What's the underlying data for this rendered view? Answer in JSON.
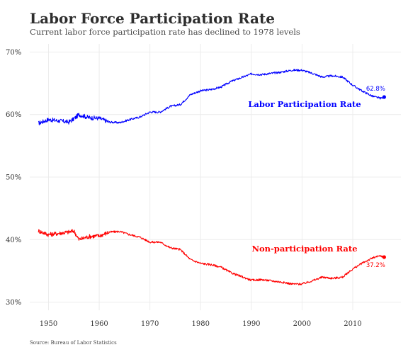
{
  "header": {
    "title": "Labor Force Participation Rate",
    "subtitle": "Current labor force participation rate has declined to 1978 levels"
  },
  "footer": {
    "source": "Source: Bureau of Labor Statistics"
  },
  "chart_data": {
    "type": "line",
    "title": "Labor Force Participation Rate",
    "subtitle": "Current labor force participation rate has declined to 1978 levels",
    "xlabel": "",
    "ylabel": "",
    "xlim": [
      1946.3,
      2019.5
    ],
    "ylim": [
      28.7,
      71.3
    ],
    "x_ticks": [
      1950,
      1960,
      1970,
      1980,
      1990,
      2000,
      2010
    ],
    "y_ticks": [
      30,
      40,
      50,
      60,
      70
    ],
    "y_tick_labels": [
      "30%",
      "40%",
      "50%",
      "60%",
      "70%"
    ],
    "grid": true,
    "legend": "none",
    "series": [
      {
        "name": "Labor Participation Rate",
        "color": "#0000ff",
        "end_label": "62.8%",
        "points": [
          [
            1948,
            58.6
          ],
          [
            1950,
            59.2
          ],
          [
            1952,
            59.0
          ],
          [
            1954,
            58.8
          ],
          [
            1955,
            59.3
          ],
          [
            1956,
            60.0
          ],
          [
            1958,
            59.5
          ],
          [
            1960,
            59.4
          ],
          [
            1962,
            58.8
          ],
          [
            1964,
            58.7
          ],
          [
            1966,
            59.2
          ],
          [
            1968,
            59.6
          ],
          [
            1970,
            60.4
          ],
          [
            1972,
            60.4
          ],
          [
            1974,
            61.3
          ],
          [
            1976,
            61.6
          ],
          [
            1978,
            63.2
          ],
          [
            1980,
            63.8
          ],
          [
            1982,
            64.0
          ],
          [
            1984,
            64.4
          ],
          [
            1986,
            65.3
          ],
          [
            1988,
            65.9
          ],
          [
            1990,
            66.5
          ],
          [
            1992,
            66.4
          ],
          [
            1994,
            66.6
          ],
          [
            1996,
            66.8
          ],
          [
            1998,
            67.1
          ],
          [
            2000,
            67.1
          ],
          [
            2002,
            66.6
          ],
          [
            2004,
            66.0
          ],
          [
            2006,
            66.2
          ],
          [
            2008,
            66.0
          ],
          [
            2010,
            64.7
          ],
          [
            2012,
            63.7
          ],
          [
            2014,
            62.9
          ],
          [
            2015.5,
            62.6
          ],
          [
            2016.2,
            62.8
          ]
        ]
      },
      {
        "name": "Non-participation Rate",
        "color": "#ff0000",
        "end_label": "37.2%",
        "points": [
          [
            1948,
            41.4
          ],
          [
            1950,
            40.8
          ],
          [
            1952,
            41.0
          ],
          [
            1954,
            41.2
          ],
          [
            1955,
            41.4
          ],
          [
            1956,
            40.0
          ],
          [
            1958,
            40.5
          ],
          [
            1960,
            40.6
          ],
          [
            1962,
            41.2
          ],
          [
            1964,
            41.3
          ],
          [
            1966,
            40.8
          ],
          [
            1968,
            40.4
          ],
          [
            1970,
            39.6
          ],
          [
            1972,
            39.6
          ],
          [
            1974,
            38.7
          ],
          [
            1976,
            38.4
          ],
          [
            1978,
            36.8
          ],
          [
            1980,
            36.2
          ],
          [
            1982,
            36.0
          ],
          [
            1984,
            35.6
          ],
          [
            1986,
            34.7
          ],
          [
            1988,
            34.1
          ],
          [
            1990,
            33.5
          ],
          [
            1992,
            33.6
          ],
          [
            1994,
            33.4
          ],
          [
            1996,
            33.2
          ],
          [
            1998,
            32.9
          ],
          [
            2000,
            32.9
          ],
          [
            2002,
            33.4
          ],
          [
            2004,
            34.0
          ],
          [
            2006,
            33.8
          ],
          [
            2008,
            34.0
          ],
          [
            2010,
            35.3
          ],
          [
            2012,
            36.3
          ],
          [
            2014,
            37.1
          ],
          [
            2015.5,
            37.4
          ],
          [
            2016.2,
            37.2
          ]
        ]
      }
    ]
  }
}
